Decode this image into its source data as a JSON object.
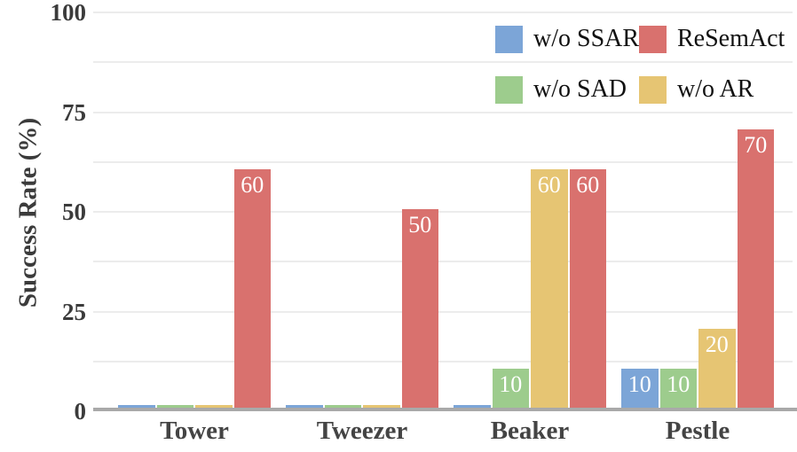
{
  "chart_data": {
    "type": "bar",
    "title": "",
    "xlabel": "",
    "ylabel": "Success Rate (%)",
    "categories": [
      "Tower",
      "Tweezer",
      "Beaker",
      "Pestle"
    ],
    "series": [
      {
        "name": "w/o SSAR",
        "color": "#7CA5D7",
        "values": [
          1,
          1,
          1,
          10
        ],
        "labels": [
          "",
          "",
          "",
          "10"
        ]
      },
      {
        "name": "w/o SAD",
        "color": "#9DCC8D",
        "values": [
          1,
          1,
          10,
          10
        ],
        "labels": [
          "",
          "",
          "10",
          "10"
        ]
      },
      {
        "name": "w/o AR",
        "color": "#E6C573",
        "values": [
          1,
          1,
          60,
          20
        ],
        "labels": [
          "",
          "",
          "60",
          "20"
        ]
      },
      {
        "name": "ReSemAct",
        "color": "#D9716E",
        "values": [
          60,
          50,
          60,
          70
        ],
        "labels": [
          "60",
          "50",
          "60",
          "70"
        ]
      }
    ],
    "ylim": [
      0,
      100
    ],
    "yticks": [
      0,
      25,
      50,
      75,
      100
    ],
    "gridline_step": 12.5,
    "grid": true,
    "legend_position": "top-right",
    "bar_value_label_color": "#FFFFFF"
  },
  "legend": {
    "rows": [
      [
        {
          "label": "w/o SSAR",
          "color": "#7CA5D7"
        },
        {
          "label": "ReSemAct",
          "color": "#D9716E"
        }
      ],
      [
        {
          "label": "w/o SAD",
          "color": "#9DCC8D"
        },
        {
          "label": "w/o AR",
          "color": "#E6C573"
        }
      ]
    ]
  },
  "colors": {
    "blue": "#7CA5D7",
    "green": "#9DCC8D",
    "yellow": "#E6C573",
    "red": "#D9716E",
    "gridline": "#ECECEC",
    "axis_line": "#A9A9A9",
    "tick_text": "#3B3B3B",
    "legend_text": "#111111"
  }
}
